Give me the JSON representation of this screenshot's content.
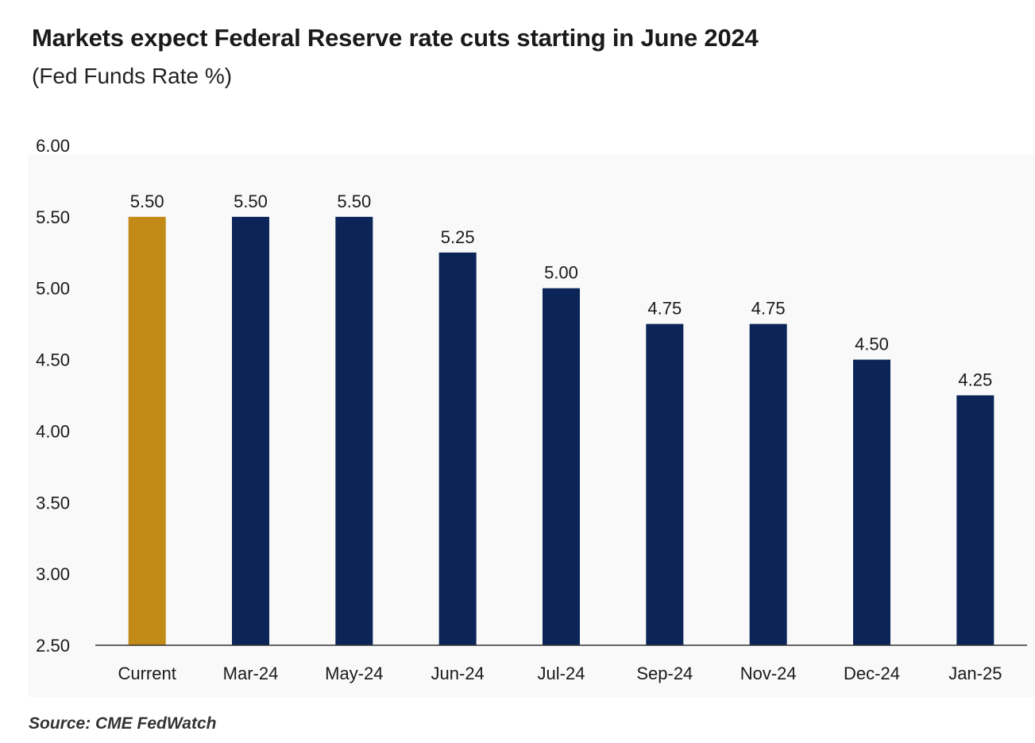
{
  "chart_data": {
    "type": "bar",
    "title": "Markets expect Federal Reserve rate cuts starting in June 2024",
    "subtitle": "(Fed Funds Rate %)",
    "categories": [
      "Current",
      "Mar-24",
      "May-24",
      "Jun-24",
      "Jul-24",
      "Sep-24",
      "Nov-24",
      "Dec-24",
      "Jan-25"
    ],
    "values": [
      5.5,
      5.5,
      5.5,
      5.25,
      5.0,
      4.75,
      4.75,
      4.5,
      4.25
    ],
    "data_labels": [
      "5.50",
      "5.50",
      "5.50",
      "5.25",
      "5.00",
      "4.75",
      "4.75",
      "4.50",
      "4.25"
    ],
    "ylim": [
      2.5,
      6.0
    ],
    "yticks": [
      "2.50",
      "3.00",
      "3.50",
      "4.00",
      "4.50",
      "5.00",
      "5.50",
      "6.00"
    ],
    "xlabel": "",
    "ylabel": "",
    "grid": false,
    "legend": "none",
    "colors": {
      "current": "#C28A17",
      "forecast": "#0B2558",
      "axis": "#333333"
    }
  },
  "source": "Source: CME FedWatch"
}
